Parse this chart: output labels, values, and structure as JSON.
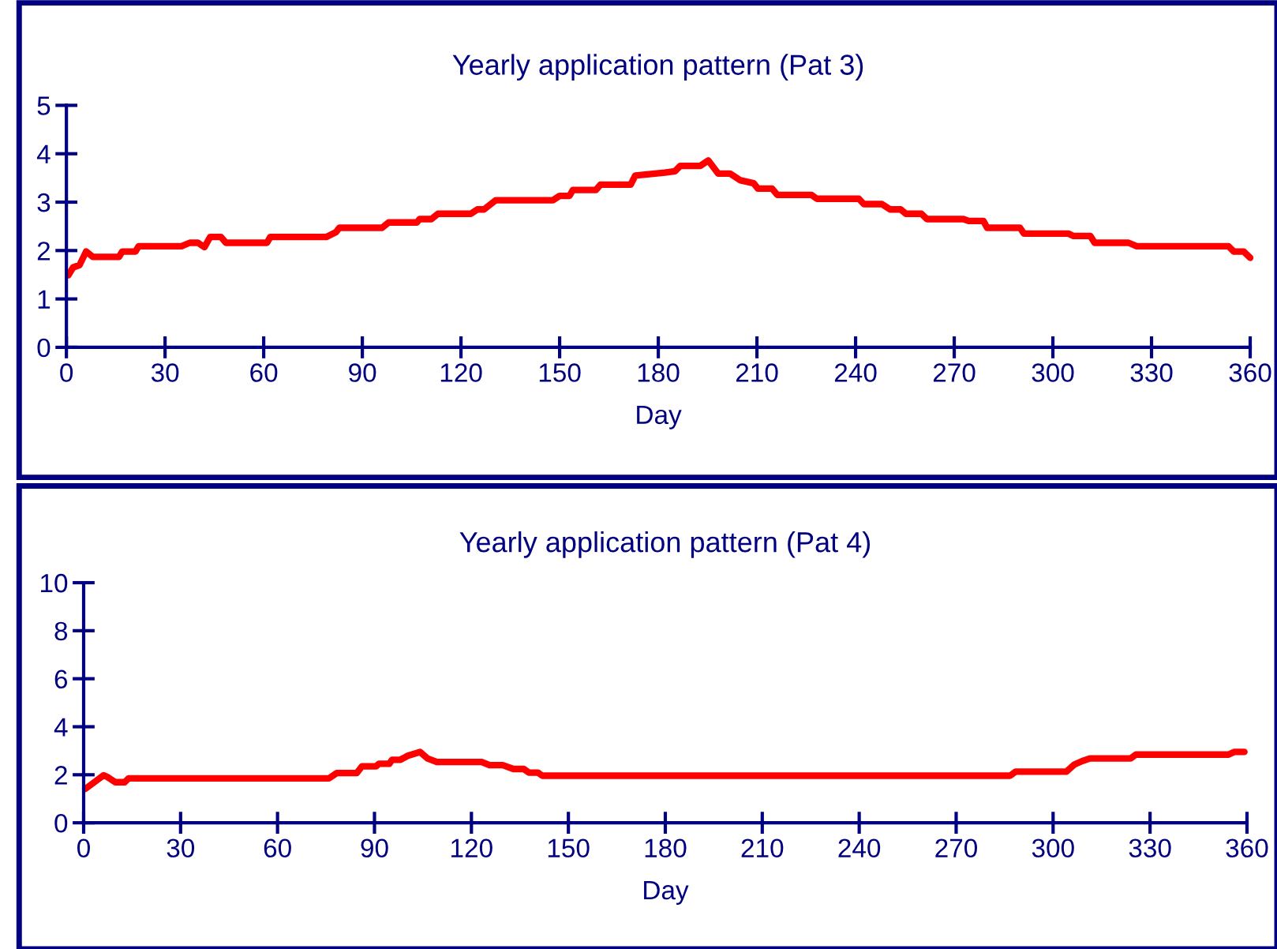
{
  "chart_data": [
    {
      "type": "line",
      "title": "Yearly application pattern (Pat 3)",
      "xlabel": "Day",
      "xlim": [
        0,
        360
      ],
      "xticks": [
        0,
        30,
        60,
        90,
        120,
        150,
        180,
        210,
        240,
        270,
        300,
        330,
        360
      ],
      "ylim": [
        0,
        5
      ],
      "yticks": [
        0,
        1,
        2,
        3,
        4,
        5
      ],
      "grid": false,
      "legend": false,
      "marker": "none",
      "line_style": "solid",
      "series": [
        {
          "color": "#ff0000",
          "x": [
            0.6,
            2,
            4,
            6,
            8,
            16,
            17,
            21,
            22,
            35,
            37.5,
            40,
            42,
            43.7,
            47,
            48.5,
            61,
            62,
            79,
            82,
            83,
            96,
            98,
            106.6,
            107.4,
            111,
            113,
            123,
            125,
            127,
            130.6,
            148,
            150,
            153,
            154,
            161,
            162.4,
            171.6,
            173,
            182,
            185.1,
            186.7,
            192.8,
            195.2,
            198.2,
            201.8,
            205,
            209,
            210.3,
            214.6,
            216.2,
            226.6,
            228.2,
            241,
            242.5,
            248,
            250.5,
            253.7,
            255.3,
            260,
            261.7,
            272.8,
            274.4,
            278.9,
            280,
            290,
            291.2,
            304.7,
            306.3,
            311.4,
            312.7,
            323,
            325.5,
            353.4,
            355,
            358,
            360
          ],
          "values": [
            1.49,
            1.65,
            1.7,
            1.98,
            1.87,
            1.87,
            1.98,
            1.98,
            2.09,
            2.09,
            2.16,
            2.16,
            2.07,
            2.28,
            2.28,
            2.16,
            2.16,
            2.28,
            2.28,
            2.38,
            2.47,
            2.47,
            2.58,
            2.58,
            2.65,
            2.65,
            2.76,
            2.76,
            2.85,
            2.85,
            3.04,
            3.04,
            3.13,
            3.13,
            3.25,
            3.25,
            3.36,
            3.36,
            3.55,
            3.61,
            3.64,
            3.75,
            3.75,
            3.86,
            3.59,
            3.59,
            3.45,
            3.39,
            3.28,
            3.28,
            3.15,
            3.15,
            3.07,
            3.07,
            2.96,
            2.96,
            2.85,
            2.85,
            2.76,
            2.76,
            2.65,
            2.65,
            2.61,
            2.61,
            2.47,
            2.47,
            2.35,
            2.35,
            2.3,
            2.3,
            2.16,
            2.16,
            2.09,
            2.09,
            1.98,
            1.98,
            1.85
          ]
        }
      ]
    },
    {
      "type": "line",
      "title": "Yearly application pattern (Pat 4)",
      "xlabel": "Day",
      "xlim": [
        0,
        360
      ],
      "xticks": [
        0,
        30,
        60,
        90,
        120,
        150,
        180,
        210,
        240,
        270,
        300,
        330,
        360
      ],
      "ylim": [
        0,
        10
      ],
      "yticks": [
        0,
        2,
        4,
        6,
        8,
        10
      ],
      "grid": false,
      "legend": false,
      "marker": "none",
      "line_style": "solid",
      "series": [
        {
          "color": "#ff0000",
          "x": [
            0.5,
            3.3,
            6.2,
            7.3,
            9.8,
            12.7,
            13.9,
            75.9,
            78.3,
            84.5,
            86.1,
            90.5,
            91.4,
            94.6,
            95.4,
            97.9,
            100.3,
            104.1,
            106.4,
            109.3,
            123.2,
            125.6,
            129.7,
            133,
            136.2,
            137.8,
            140.6,
            141.9,
            286.7,
            288.4,
            304.1,
            306.5,
            309,
            311.4,
            324,
            325.6,
            354.3,
            356,
            359.2
          ],
          "values": [
            1.41,
            1.69,
            1.98,
            1.91,
            1.69,
            1.69,
            1.85,
            1.85,
            2.07,
            2.07,
            2.35,
            2.35,
            2.46,
            2.46,
            2.62,
            2.62,
            2.79,
            2.95,
            2.68,
            2.53,
            2.53,
            2.4,
            2.4,
            2.24,
            2.24,
            2.09,
            2.09,
            1.96,
            1.96,
            2.13,
            2.13,
            2.42,
            2.57,
            2.68,
            2.68,
            2.84,
            2.84,
            2.95,
            2.95
          ]
        }
      ]
    }
  ]
}
